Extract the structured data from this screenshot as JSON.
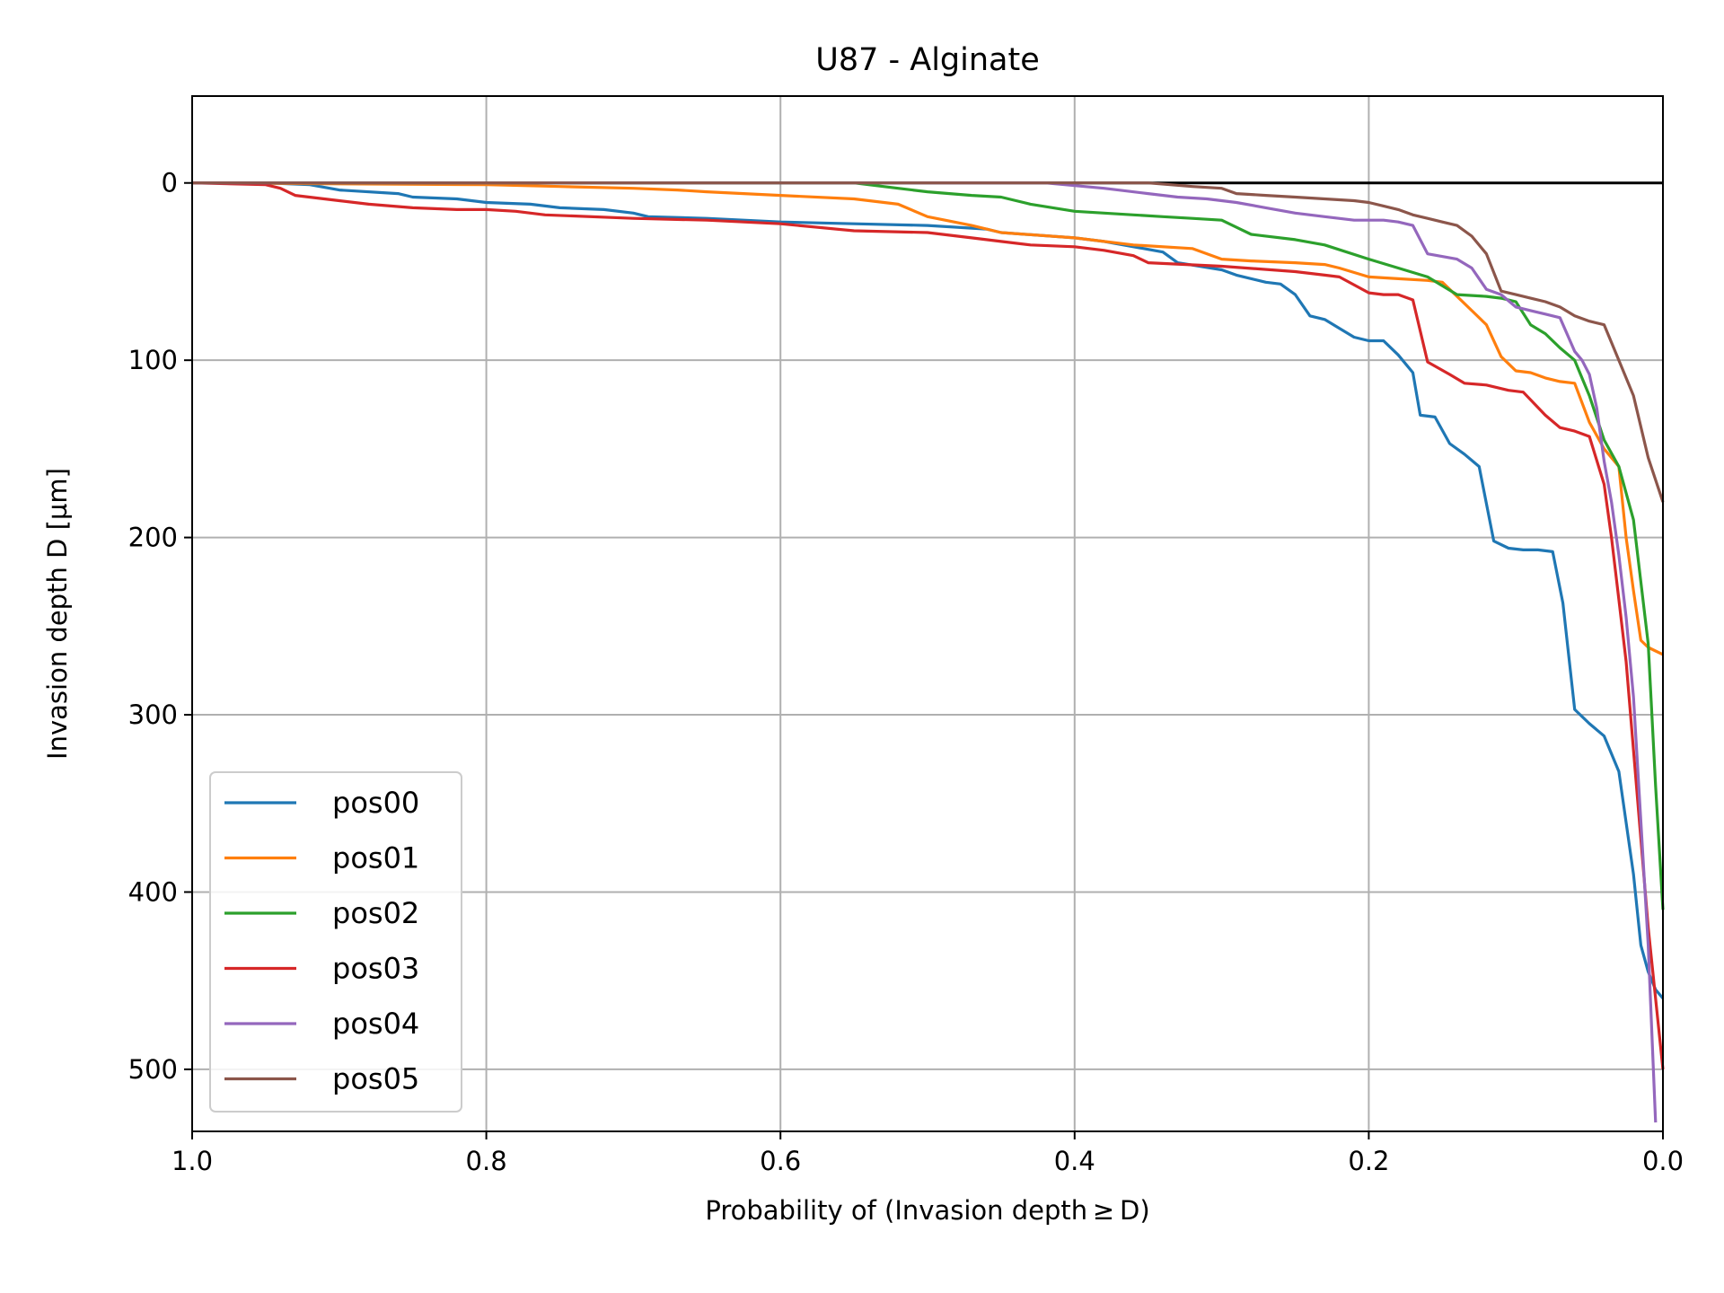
{
  "chart_data": {
    "type": "line",
    "title": "U87 - Alginate",
    "xlabel": "Probability of (Invasion depth ≥ D)",
    "ylabel": "Invasion depth D [µm]",
    "xlim": [
      1.0,
      0.0
    ],
    "ylim": [
      535,
      -49
    ],
    "x_ticks": [
      "1.0",
      "0.8",
      "0.6",
      "0.4",
      "0.2",
      "0.0"
    ],
    "y_ticks": [
      "0",
      "100",
      "200",
      "300",
      "400",
      "500"
    ],
    "grid": true,
    "legend_position": "lower-left",
    "reference_line": 0,
    "series": [
      {
        "name": "pos00",
        "color": "#1f77b4",
        "x": [
          1.0,
          0.95,
          0.92,
          0.9,
          0.86,
          0.85,
          0.82,
          0.8,
          0.77,
          0.75,
          0.72,
          0.7,
          0.69,
          0.65,
          0.6,
          0.55,
          0.5,
          0.46,
          0.45,
          0.4,
          0.38,
          0.36,
          0.34,
          0.33,
          0.3,
          0.29,
          0.27,
          0.26,
          0.25,
          0.24,
          0.23,
          0.22,
          0.21,
          0.2,
          0.19,
          0.18,
          0.17,
          0.165,
          0.155,
          0.145,
          0.135,
          0.125,
          0.115,
          0.105,
          0.095,
          0.085,
          0.075,
          0.068,
          0.06,
          0.05,
          0.04,
          0.03,
          0.02,
          0.015,
          0.01,
          0.005,
          0.0
        ],
        "y": [
          0,
          0,
          1,
          4,
          6,
          8,
          9,
          11,
          12,
          14,
          15,
          17,
          19,
          20,
          22,
          23,
          24,
          26,
          28,
          31,
          33,
          36,
          39,
          45,
          49,
          52,
          56,
          57,
          63,
          75,
          77,
          82,
          87,
          89,
          89,
          97,
          107,
          131,
          132,
          147,
          153,
          160,
          202,
          206,
          207,
          207,
          208,
          237,
          297,
          305,
          312,
          332,
          390,
          430,
          445,
          455,
          460
        ]
      },
      {
        "name": "pos01",
        "color": "#ff7f0e",
        "x": [
          1.0,
          0.8,
          0.75,
          0.7,
          0.67,
          0.65,
          0.6,
          0.55,
          0.52,
          0.5,
          0.47,
          0.45,
          0.4,
          0.38,
          0.36,
          0.32,
          0.3,
          0.28,
          0.25,
          0.23,
          0.22,
          0.2,
          0.18,
          0.16,
          0.15,
          0.13,
          0.12,
          0.11,
          0.1,
          0.09,
          0.08,
          0.07,
          0.06,
          0.05,
          0.04,
          0.03,
          0.025,
          0.02,
          0.015,
          0.01,
          0.005,
          0.0
        ],
        "y": [
          0,
          1,
          2,
          3,
          4,
          5,
          7,
          9,
          12,
          19,
          24,
          28,
          31,
          33,
          35,
          37,
          43,
          44,
          45,
          46,
          48,
          53,
          54,
          55,
          56,
          72,
          80,
          98,
          106,
          107,
          110,
          112,
          113,
          135,
          150,
          160,
          200,
          230,
          258,
          262,
          264,
          266
        ]
      },
      {
        "name": "pos02",
        "color": "#2ca02c",
        "x": [
          1.0,
          0.55,
          0.52,
          0.5,
          0.47,
          0.45,
          0.43,
          0.4,
          0.38,
          0.36,
          0.34,
          0.32,
          0.3,
          0.28,
          0.25,
          0.23,
          0.2,
          0.18,
          0.16,
          0.14,
          0.12,
          0.11,
          0.1,
          0.09,
          0.08,
          0.07,
          0.06,
          0.05,
          0.04,
          0.03,
          0.02,
          0.01,
          0.005,
          0.0
        ],
        "y": [
          0,
          0,
          3,
          5,
          7,
          8,
          12,
          16,
          17,
          18,
          19,
          20,
          21,
          29,
          32,
          35,
          43,
          48,
          53,
          63,
          64,
          65,
          67,
          80,
          85,
          93,
          100,
          120,
          145,
          160,
          190,
          260,
          340,
          410
        ]
      },
      {
        "name": "pos03",
        "color": "#d62728",
        "x": [
          1.0,
          0.95,
          0.94,
          0.93,
          0.9,
          0.88,
          0.85,
          0.82,
          0.8,
          0.78,
          0.76,
          0.7,
          0.65,
          0.6,
          0.55,
          0.5,
          0.47,
          0.45,
          0.43,
          0.4,
          0.38,
          0.36,
          0.35,
          0.3,
          0.25,
          0.23,
          0.22,
          0.2,
          0.19,
          0.18,
          0.17,
          0.16,
          0.145,
          0.135,
          0.12,
          0.105,
          0.095,
          0.08,
          0.07,
          0.06,
          0.05,
          0.04,
          0.035,
          0.03,
          0.025,
          0.02,
          0.01,
          0.005,
          0.0
        ],
        "y": [
          0,
          1,
          3,
          7,
          10,
          12,
          14,
          15,
          15,
          16,
          18,
          20,
          21,
          23,
          27,
          28,
          31,
          33,
          35,
          36,
          38,
          41,
          45,
          47,
          50,
          52,
          53,
          62,
          63,
          63,
          66,
          101,
          108,
          113,
          114,
          117,
          118,
          131,
          138,
          140,
          143,
          170,
          200,
          235,
          270,
          320,
          420,
          460,
          500
        ]
      },
      {
        "name": "pos04",
        "color": "#9467bd",
        "x": [
          1.0,
          0.42,
          0.38,
          0.35,
          0.33,
          0.31,
          0.29,
          0.27,
          0.25,
          0.23,
          0.21,
          0.19,
          0.18,
          0.17,
          0.16,
          0.14,
          0.13,
          0.12,
          0.11,
          0.1,
          0.09,
          0.08,
          0.07,
          0.06,
          0.055,
          0.05,
          0.045,
          0.04,
          0.035,
          0.03,
          0.025,
          0.02,
          0.015,
          0.01,
          0.005
        ],
        "y": [
          0,
          0,
          3,
          6,
          8,
          9,
          11,
          14,
          17,
          19,
          21,
          21,
          22,
          24,
          40,
          43,
          48,
          60,
          63,
          70,
          72,
          74,
          76,
          95,
          100,
          108,
          127,
          157,
          180,
          210,
          245,
          290,
          360,
          430,
          530
        ]
      },
      {
        "name": "pos05",
        "color": "#8c564b",
        "x": [
          1.0,
          0.35,
          0.32,
          0.3,
          0.29,
          0.27,
          0.25,
          0.23,
          0.21,
          0.2,
          0.19,
          0.18,
          0.17,
          0.16,
          0.15,
          0.14,
          0.13,
          0.12,
          0.11,
          0.1,
          0.09,
          0.08,
          0.07,
          0.06,
          0.05,
          0.04,
          0.03,
          0.02,
          0.01,
          0.0
        ],
        "y": [
          0,
          0,
          2,
          3,
          6,
          7,
          8,
          9,
          10,
          11,
          13,
          15,
          18,
          20,
          22,
          24,
          30,
          40,
          61,
          63,
          65,
          67,
          70,
          75,
          78,
          80,
          100,
          120,
          155,
          180
        ]
      }
    ]
  }
}
